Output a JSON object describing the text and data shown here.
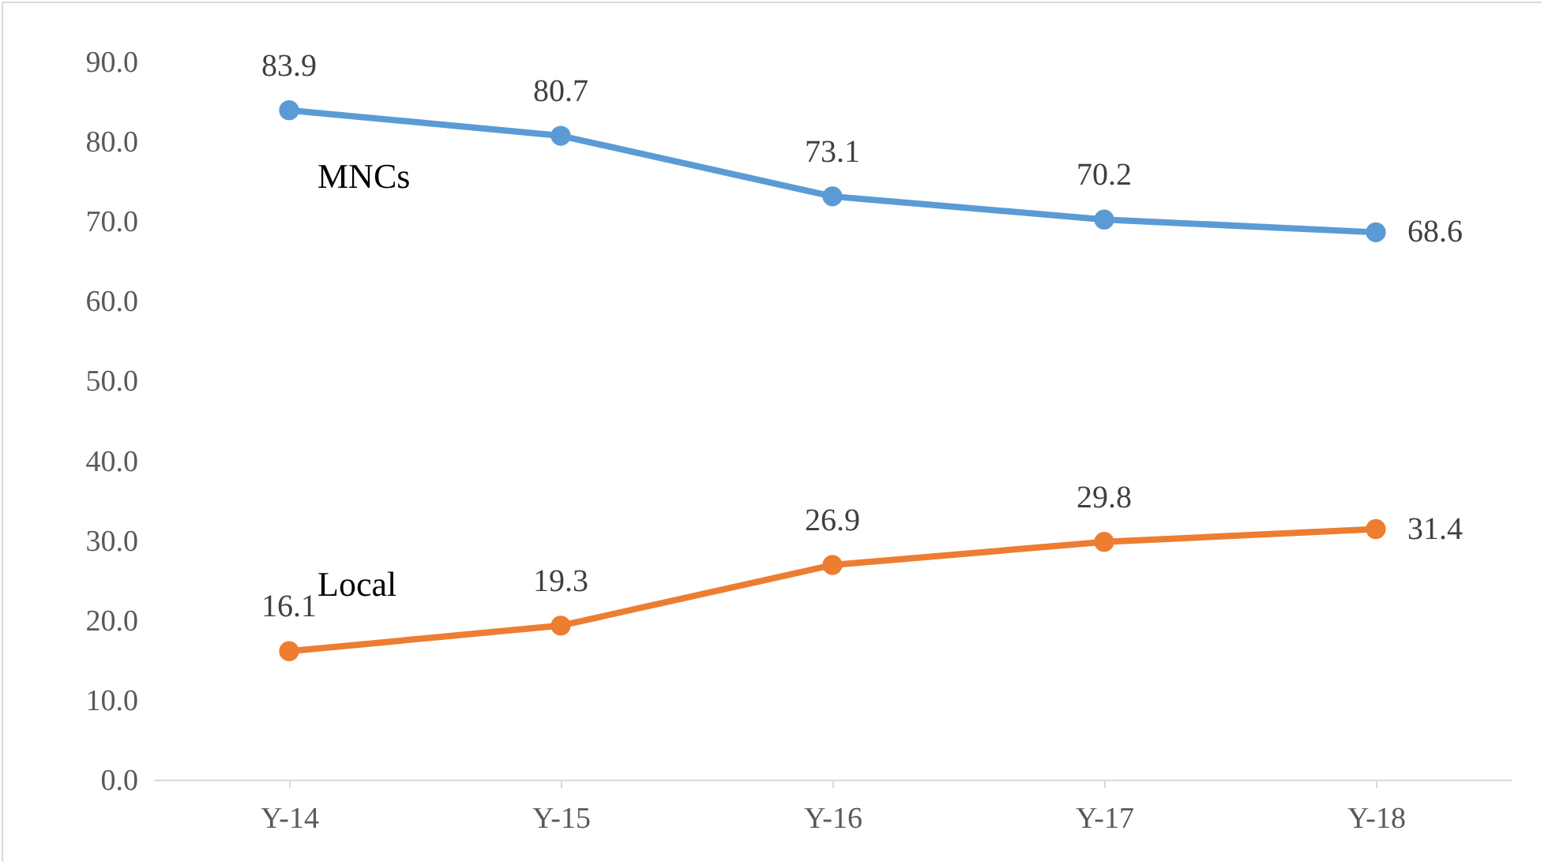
{
  "chart_data": {
    "type": "line",
    "categories": [
      "Y-14",
      "Y-15",
      "Y-16",
      "Y-17",
      "Y-18"
    ],
    "series": [
      {
        "name": "MNCs",
        "color": "#5b9bd5",
        "values": [
          83.9,
          80.7,
          73.1,
          70.2,
          68.6
        ]
      },
      {
        "name": "Local",
        "color": "#ed7d31",
        "values": [
          16.1,
          19.3,
          26.9,
          29.8,
          31.4
        ]
      }
    ],
    "ylim": [
      0,
      90
    ],
    "yticks": [
      {
        "value": 0,
        "label": "0.0"
      },
      {
        "value": 10,
        "label": "10.0"
      },
      {
        "value": 20,
        "label": "20.0"
      },
      {
        "value": 30,
        "label": "30.0"
      },
      {
        "value": 40,
        "label": "40.0"
      },
      {
        "value": 50,
        "label": "50.0"
      },
      {
        "value": 60,
        "label": "60.0"
      },
      {
        "value": 70,
        "label": "70.0"
      },
      {
        "value": 80,
        "label": "80.0"
      },
      {
        "value": 90,
        "label": "90.0"
      }
    ],
    "grid": false,
    "legend": false,
    "marker": "circle",
    "line_style": "solid",
    "data_labels": true
  }
}
